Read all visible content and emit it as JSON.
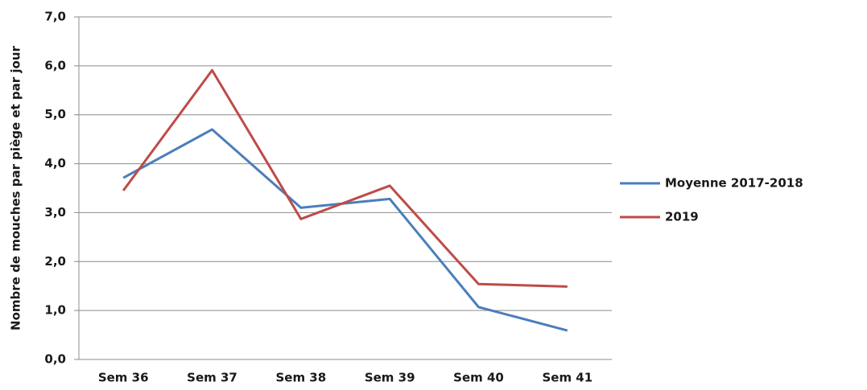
{
  "chart_data": {
    "type": "line",
    "y_label": "Nombre de mouches par piège et par jour",
    "categories": [
      "Sem 36",
      "Sem 37",
      "Sem 38",
      "Sem 39",
      "Sem 40",
      "Sem 41"
    ],
    "series": [
      {
        "name": "Moyenne 2017-2018",
        "color": "#4a7ebb",
        "values": [
          3.71,
          4.7,
          3.1,
          3.28,
          1.07,
          0.59
        ]
      },
      {
        "name": "2019",
        "color": "#be4b48",
        "values": [
          3.45,
          5.91,
          2.87,
          3.55,
          1.54,
          1.49
        ]
      }
    ],
    "ylim": [
      0,
      7
    ],
    "yticks": [
      {
        "value": 0,
        "label": "0,0"
      },
      {
        "value": 1,
        "label": "1,0"
      },
      {
        "value": 2,
        "label": "2,0"
      },
      {
        "value": 3,
        "label": "3,0"
      },
      {
        "value": 4,
        "label": "4,0"
      },
      {
        "value": 5,
        "label": "5,0"
      },
      {
        "value": 6,
        "label": "6,0"
      },
      {
        "value": 7,
        "label": "7,0"
      }
    ],
    "grid": true,
    "legend": "right"
  }
}
